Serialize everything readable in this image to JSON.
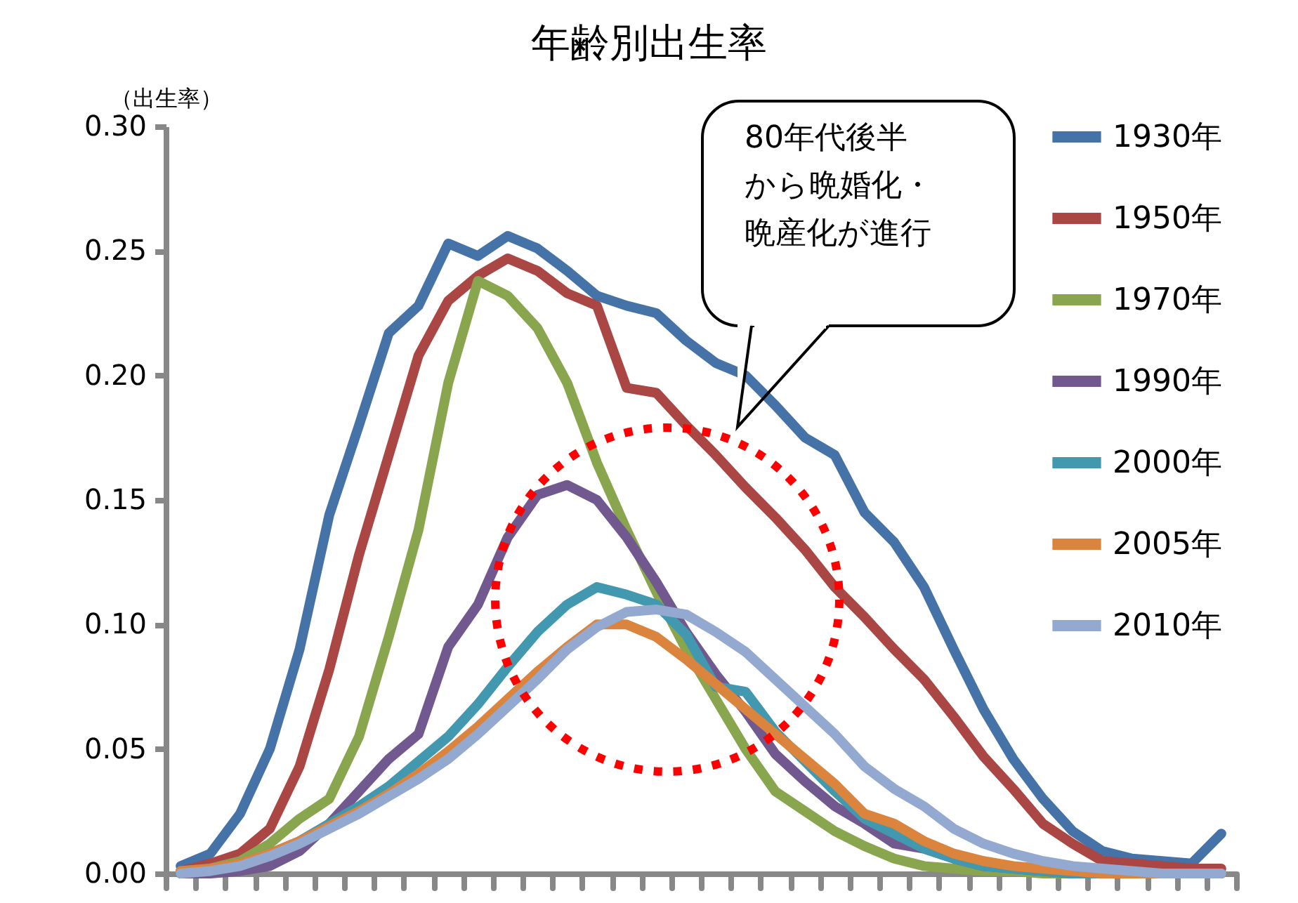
{
  "chart_data": {
    "type": "line",
    "title": "年齢別出生率",
    "ylabel": "（出生率）",
    "categories": [
      null,
      null,
      null,
      null,
      null,
      null,
      null,
      null,
      null,
      null,
      null,
      null,
      null,
      null,
      null,
      null,
      null,
      null,
      null,
      null,
      null,
      null,
      null,
      null,
      null,
      null,
      null,
      null,
      null,
      null,
      null,
      null,
      null,
      null,
      null,
      null
    ],
    "ylim": [
      0,
      0.3
    ],
    "yticks": [
      {
        "value": 0,
        "label": "0.00"
      },
      {
        "value": 0.05,
        "label": "0.05"
      },
      {
        "value": 0.1,
        "label": "0.10"
      },
      {
        "value": 0.15,
        "label": "0.15"
      },
      {
        "value": 0.2,
        "label": "0.20"
      },
      {
        "value": 0.25,
        "label": "0.25"
      },
      {
        "value": 0.3,
        "label": "0.30"
      }
    ],
    "grid": false,
    "legend": "top right",
    "marker": "none",
    "line_style": "solid",
    "annotations": [
      "80年代後半から晩婚化・晩産化が進行"
    ],
    "series": [
      {
        "name": "1930年",
        "color": "#4572a7",
        "values": [
          0.003,
          0.008,
          0.024,
          0.05,
          0.09,
          0.144,
          0.18,
          0.217,
          0.228,
          0.253,
          0.248,
          0.256,
          0.251,
          0.242,
          0.232,
          0.228,
          0.225,
          0.214,
          0.205,
          0.2,
          0.188,
          0.175,
          0.168,
          0.145,
          0.133,
          0.115,
          0.09,
          0.066,
          0.046,
          0.03,
          0.017,
          0.009,
          0.006,
          0.005,
          0.004,
          0.016
        ]
      },
      {
        "name": "1950年",
        "color": "#aa4643",
        "values": [
          0.001,
          0.004,
          0.008,
          0.018,
          0.043,
          0.082,
          0.128,
          0.168,
          0.208,
          0.23,
          0.24,
          0.247,
          0.242,
          0.233,
          0.228,
          0.195,
          0.193,
          0.18,
          0.168,
          0.155,
          0.143,
          0.13,
          0.115,
          0.103,
          0.09,
          0.078,
          0.063,
          0.047,
          0.034,
          0.02,
          0.012,
          0.005,
          0.004,
          0.003,
          0.002,
          0.002
        ]
      },
      {
        "name": "1970年",
        "color": "#89a54e",
        "values": [
          0.0,
          0.002,
          0.005,
          0.012,
          0.022,
          0.03,
          0.055,
          0.095,
          0.138,
          0.197,
          0.238,
          0.232,
          0.219,
          0.197,
          0.165,
          0.138,
          0.113,
          0.09,
          0.07,
          0.05,
          0.033,
          0.025,
          0.017,
          0.011,
          0.006,
          0.003,
          0.002,
          0.001,
          0.001,
          0.0,
          0.0,
          0.0,
          0.0,
          null,
          null,
          null
        ]
      },
      {
        "name": "1990年",
        "color": "#71588f",
        "values": [
          0.0,
          0.0,
          0.001,
          0.003,
          0.009,
          0.02,
          0.033,
          0.046,
          0.056,
          0.091,
          0.108,
          0.135,
          0.152,
          0.156,
          0.15,
          0.135,
          0.117,
          0.097,
          0.08,
          0.065,
          0.048,
          0.037,
          0.027,
          0.02,
          0.012,
          0.01,
          0.006,
          0.003,
          0.002,
          0.001,
          0.0,
          0.0,
          0.0,
          0.0,
          0.0,
          0.0
        ]
      },
      {
        "name": "2000年",
        "color": "#4198af",
        "values": [
          0.001,
          0.002,
          0.004,
          0.008,
          0.013,
          0.02,
          0.027,
          0.035,
          0.045,
          0.055,
          0.068,
          0.083,
          0.097,
          0.108,
          0.115,
          0.112,
          0.108,
          0.096,
          0.075,
          0.073,
          0.057,
          0.045,
          0.033,
          0.022,
          0.016,
          0.01,
          0.006,
          0.003,
          0.002,
          0.001,
          0.0,
          0.0,
          0.0,
          0.0,
          0.0,
          0.0
        ]
      },
      {
        "name": "2005年",
        "color": "#db843d",
        "values": [
          0.001,
          0.002,
          0.004,
          0.008,
          0.013,
          0.019,
          0.025,
          0.032,
          0.04,
          0.049,
          0.059,
          0.07,
          0.081,
          0.091,
          0.1,
          0.1,
          0.095,
          0.086,
          0.076,
          0.066,
          0.056,
          0.046,
          0.036,
          0.024,
          0.02,
          0.013,
          0.008,
          0.005,
          0.003,
          0.002,
          0.001,
          0.0,
          0.0,
          0.0,
          0.0,
          0.0
        ]
      },
      {
        "name": "2010年",
        "color": "#93a9cf",
        "values": [
          0.0,
          0.001,
          0.003,
          0.007,
          0.012,
          0.018,
          0.024,
          0.031,
          0.038,
          0.046,
          0.056,
          0.067,
          0.078,
          0.09,
          0.099,
          0.105,
          0.106,
          0.104,
          0.097,
          0.089,
          0.078,
          0.067,
          0.056,
          0.043,
          0.034,
          0.027,
          0.018,
          0.012,
          0.008,
          0.005,
          0.003,
          0.002,
          0.001,
          0.0,
          0.0,
          0.0
        ]
      }
    ]
  }
}
